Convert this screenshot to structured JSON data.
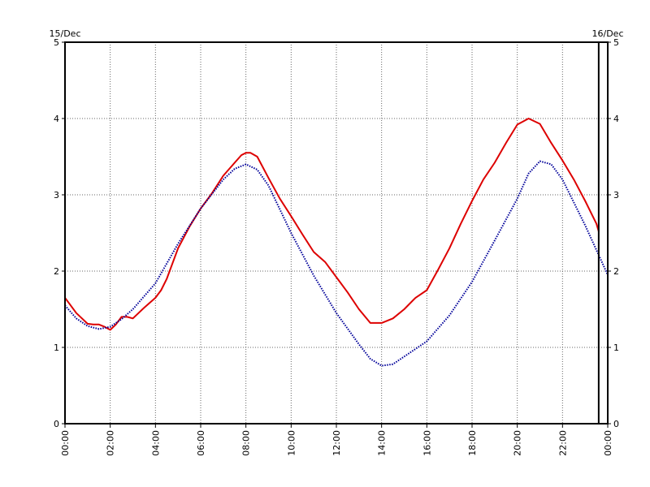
{
  "chart_data": {
    "type": "line",
    "title": "",
    "xlabel": "",
    "ylabel": "",
    "date_left": "15/Dec",
    "date_right": "16/Dec",
    "xlim": [
      0,
      24
    ],
    "ylim": [
      0,
      5
    ],
    "x_ticks": [
      0,
      2,
      4,
      6,
      8,
      10,
      12,
      14,
      16,
      18,
      20,
      22,
      24
    ],
    "x_tick_labels": [
      "00:00",
      "02:00",
      "04:00",
      "06:00",
      "08:00",
      "10:00",
      "12:00",
      "14:00",
      "16:00",
      "18:00",
      "20:00",
      "22:00",
      "00:00"
    ],
    "y_ticks": [
      0,
      1,
      2,
      3,
      4,
      5
    ],
    "y_tick_labels": [
      "0",
      "1",
      "2",
      "3",
      "4",
      "5"
    ],
    "grid": true,
    "now_marker_hour": 23.6,
    "colors": {
      "observed": "#dd0000",
      "predicted": "#000099"
    },
    "series": [
      {
        "style": "solid",
        "x": [
          0,
          0.25,
          0.5,
          0.75,
          1,
          1.25,
          1.5,
          1.75,
          2,
          2.25,
          2.5,
          2.75,
          3,
          3.25,
          3.5,
          4,
          4.25,
          4.5,
          5,
          5.5,
          6,
          6.5,
          7,
          7.5,
          7.8,
          8,
          8.2,
          8.5,
          9,
          9.5,
          10,
          10.5,
          11,
          11.5,
          12,
          12.5,
          13,
          13.5,
          14,
          14.5,
          15,
          15.5,
          16,
          16.5,
          17,
          17.5,
          18,
          18.5,
          19,
          19.5,
          20,
          20.5,
          21,
          21.5,
          22,
          22.5,
          23,
          23.5,
          23.6
        ],
        "y": [
          1.65,
          1.55,
          1.45,
          1.38,
          1.31,
          1.3,
          1.3,
          1.27,
          1.23,
          1.3,
          1.4,
          1.4,
          1.38,
          1.45,
          1.52,
          1.65,
          1.75,
          1.9,
          2.3,
          2.58,
          2.82,
          3.02,
          3.25,
          3.42,
          3.52,
          3.55,
          3.55,
          3.5,
          3.22,
          2.95,
          2.72,
          2.48,
          2.25,
          2.12,
          1.92,
          1.72,
          1.5,
          1.32,
          1.32,
          1.38,
          1.5,
          1.65,
          1.75,
          2.02,
          2.3,
          2.62,
          2.92,
          3.2,
          3.42,
          3.68,
          3.92,
          4.0,
          3.93,
          3.68,
          3.45,
          3.2,
          2.92,
          2.62,
          2.52
        ]
      },
      {
        "style": "dotted",
        "x": [
          0,
          0.5,
          1,
          1.5,
          2,
          2.5,
          3,
          4,
          5,
          6,
          7,
          7.5,
          8,
          8.5,
          9,
          10,
          11,
          12,
          13,
          13.5,
          14,
          14.5,
          15,
          16,
          17,
          18,
          19,
          20,
          20.5,
          21,
          21.5,
          22,
          23,
          24
        ],
        "y": [
          1.55,
          1.38,
          1.28,
          1.24,
          1.27,
          1.37,
          1.5,
          1.84,
          2.36,
          2.82,
          3.2,
          3.34,
          3.4,
          3.33,
          3.12,
          2.5,
          1.94,
          1.45,
          1.04,
          0.85,
          0.76,
          0.78,
          0.88,
          1.08,
          1.42,
          1.86,
          2.4,
          2.95,
          3.28,
          3.44,
          3.4,
          3.2,
          2.6,
          1.95
        ]
      }
    ]
  }
}
